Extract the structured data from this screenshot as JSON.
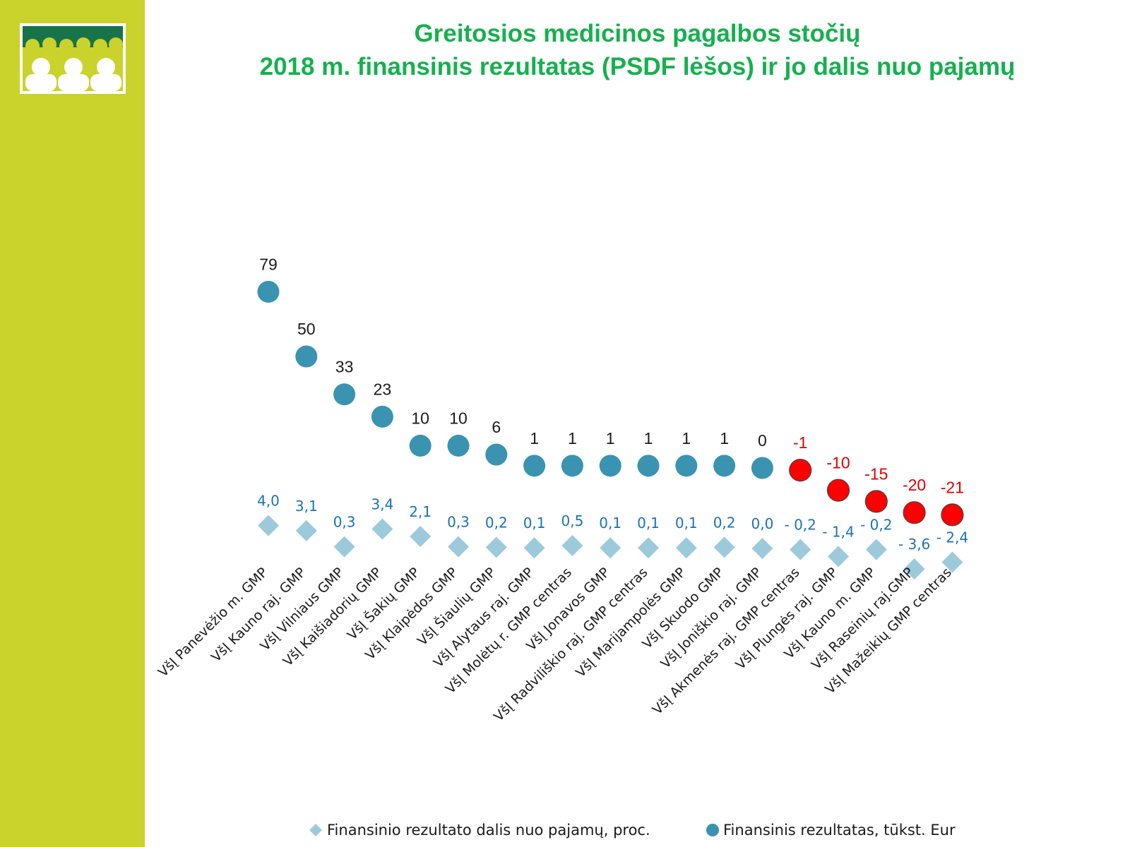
{
  "page": {
    "title_line1": "Greitosios medicinos pagalbos stočių",
    "title_line2": "2018 m. finansinis rezultatas (PSDF lėšos) ir jo dalis nuo pajamų"
  },
  "colors": {
    "sidebar": "#cad22c",
    "title": "#16b04e",
    "logo_band": "#17734a",
    "logo_fill": "#cad22c",
    "circle_positive": "#3a93b0",
    "circle_negative": "#ff0000",
    "diamond": "#9ccadb",
    "pct_label": "#1a72b4",
    "value_label_positive": "#1a1a1a",
    "value_label_negative": "#e00000"
  },
  "chart_data": {
    "type": "scatter",
    "categories": [
      "VšĮ Panevėžio m. GMP",
      "VšĮ Kauno raj. GMP",
      "VšĮ Vilniaus GMP",
      "VšĮ Kaišiadorių GMP",
      "VšĮ Šakių GMP",
      "VšĮ Klaipėdos GMP",
      "VšĮ Šiaulių GMP",
      "VšĮ Alytaus raj. GMP",
      "VšĮ Molėtų r. GMP centras",
      "VšĮ Jonavos GMP",
      "VšĮ Radviliškio raj. GMP centras",
      "VšĮ Marijampolės GMP",
      "VšĮ Skuodo GMP",
      "VšĮ Joniškio raj. GMP",
      "VšĮ Akmenės raj. GMP centras",
      "VšĮ Plungės raj. GMP",
      "VšĮ Kauno m. GMP",
      "VšĮ Raseinių raj.GMP",
      "VšĮ Mažeikių GMP centras"
    ],
    "series": [
      {
        "name": "Finansinis rezultatas, tūkst. Eur",
        "marker": "circle",
        "values": [
          79,
          50,
          33,
          23,
          10,
          10,
          6,
          1,
          1,
          1,
          1,
          1,
          1,
          0,
          -1,
          -10,
          -15,
          -20,
          -21
        ],
        "labels": [
          "79",
          "50",
          "33",
          "23",
          "10",
          "10",
          "6",
          "1",
          "1",
          "1",
          "1",
          "1",
          "1",
          "0",
          "-1",
          "-10",
          "-15",
          "-20",
          "-21"
        ]
      },
      {
        "name": "Finansinio rezultato dalis nuo pajamų, proc.",
        "marker": "diamond",
        "values": [
          4.0,
          3.1,
          0.3,
          3.4,
          2.1,
          0.3,
          0.2,
          0.1,
          0.5,
          0.1,
          0.1,
          0.1,
          0.2,
          0.0,
          -0.2,
          -1.4,
          -0.2,
          -3.6,
          -2.4
        ],
        "labels": [
          "4,0",
          "3,1",
          "0,3",
          "3,4",
          "2,1",
          "0,3",
          "0,2",
          "0,1",
          "0,5",
          "0,1",
          "0,1",
          "0,1",
          "0,2",
          "0,0",
          "- 0,2",
          "- 1,4",
          "- 0,2",
          "- 3,6",
          "- 2,4"
        ]
      }
    ],
    "legend": [
      {
        "label": "Finansinio rezultato dalis nuo pajamų, proc.",
        "marker": "diamond"
      },
      {
        "label": "Finansinis rezultatas, tūkst. Eur",
        "marker": "circle"
      }
    ],
    "legend_position": "bottom"
  }
}
